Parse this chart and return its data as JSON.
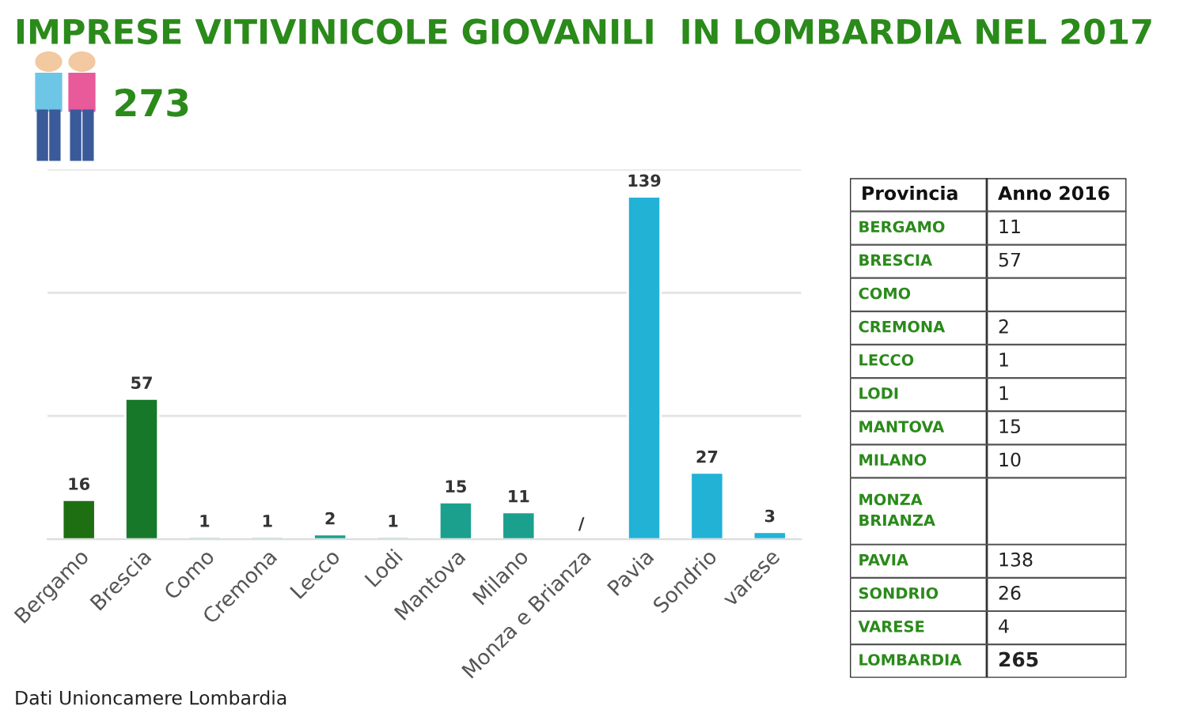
{
  "chart_data": [
    {
      "type": "bar",
      "title": "IMPRESE VITIVINICOLE GIOVANILI  IN LOMBARDIA NEL 2017",
      "categories": [
        "Bergamo",
        "Brescia",
        "Como",
        "Cremona",
        "Lecco",
        "Lodi",
        "Mantova",
        "Milano",
        "Monza e Brianza",
        "Pavia",
        "Sondrio",
        "varese"
      ],
      "values": [
        16,
        57,
        1,
        1,
        2,
        1,
        15,
        11,
        null,
        139,
        27,
        3
      ],
      "colors": [
        "#1e6e12",
        "#17782a",
        "#1ba08e",
        "#1ba08e",
        "#1ba08e",
        "#1ba08e",
        "#1ba08e",
        "#1ba08e",
        "#1ba08e",
        "#22b2d6",
        "#22b2d6",
        "#22b2d6"
      ],
      "value_labels": [
        "16",
        "57",
        "1",
        "1",
        "2",
        "1",
        "15",
        "11",
        "/",
        "139",
        "27",
        "3"
      ],
      "ylim": [
        0,
        150
      ],
      "yticks": [
        {
          "value": 0,
          "label": null
        },
        {
          "value": 50,
          "label": null
        },
        {
          "value": 100,
          "label": null
        },
        {
          "value": 150,
          "label": null
        }
      ],
      "grid": "y",
      "tick_labels": "x",
      "annotations": [
        "273",
        "Dati Unioncamere Lombardia"
      ]
    },
    {
      "type": "other",
      "categories": [
        "BERGAMO",
        "BRESCIA",
        "COMO",
        "CREMONA",
        "LECCO",
        "LODI",
        "MANTOVA",
        "MILANO",
        "MONZA\nBRIANZA",
        "PAVIA",
        "SONDRIO",
        "VARESE",
        "LOMBARDIA"
      ],
      "values": [
        11,
        57,
        null,
        2,
        1,
        1,
        15,
        10,
        null,
        138,
        26,
        4,
        265
      ],
      "data_labels": true,
      "annotations": [
        "Provincia",
        "Anno 2016"
      ]
    }
  ]
}
